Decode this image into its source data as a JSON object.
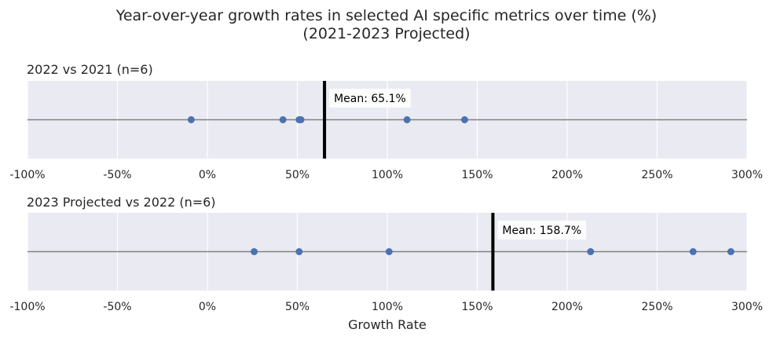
{
  "figure": {
    "title_line1": "Year-over-year growth rates in selected AI specific metrics over time (%)",
    "title_line2": "(2021-2023 Projected)"
  },
  "chart_data": [
    {
      "type": "scatter",
      "title": "2022 vs 2021 (n=6)",
      "x": [
        -9,
        42,
        51,
        52,
        111,
        143
      ],
      "mean": 65.1,
      "mean_label": "Mean: 65.1%",
      "xlim": [
        -100,
        300
      ],
      "xticks": [
        -100,
        -50,
        0,
        50,
        100,
        150,
        200,
        250,
        300
      ],
      "xtick_labels": [
        "-100%",
        "-50%",
        "0%",
        "50%",
        "100%",
        "150%",
        "200%",
        "250%",
        "300%"
      ],
      "xlabel": "",
      "grid": true
    },
    {
      "type": "scatter",
      "title": "2023 Projected vs 2022 (n=6)",
      "x": [
        26,
        51,
        101,
        213,
        270,
        291
      ],
      "mean": 158.7,
      "mean_label": "Mean: 158.7%",
      "xlim": [
        -100,
        300
      ],
      "xticks": [
        -100,
        -50,
        0,
        50,
        100,
        150,
        200,
        250,
        300
      ],
      "xtick_labels": [
        "-100%",
        "-50%",
        "0%",
        "50%",
        "100%",
        "150%",
        "200%",
        "250%",
        "300%"
      ],
      "xlabel": "Growth Rate",
      "grid": true
    }
  ],
  "colors": {
    "plot_bg": "#eaeaf2",
    "grid": "#ffffff",
    "baseline": "#808080",
    "point": "#4c72b0",
    "mean_line": "#000000",
    "mean_box": "#ffffff"
  }
}
